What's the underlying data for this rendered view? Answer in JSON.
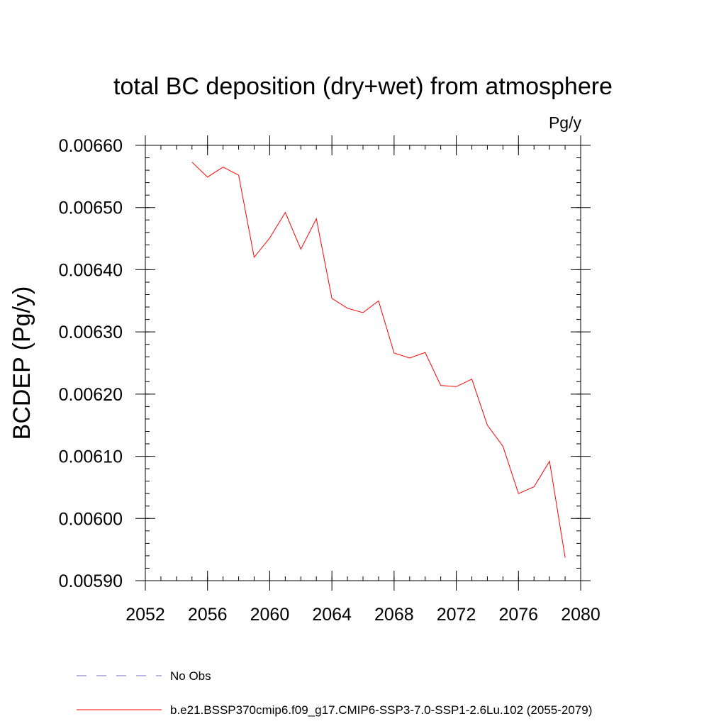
{
  "chart_data": {
    "type": "line",
    "title": "total BC deposition (dry+wet) from atmosphere",
    "units_label": "Pg/y",
    "ylabel": "BCDEP  (Pg/y)",
    "xlabel": "",
    "xlim": [
      2052,
      2080
    ],
    "ylim": [
      0.0059,
      0.0066
    ],
    "x_ticks": [
      2052,
      2056,
      2060,
      2064,
      2068,
      2072,
      2076,
      2080
    ],
    "x_tick_labels": [
      "2052",
      "2056",
      "2060",
      "2064",
      "2068",
      "2072",
      "2076",
      "2080"
    ],
    "y_ticks": [
      0.0059,
      0.006,
      0.0061,
      0.0062,
      0.0063,
      0.0064,
      0.0065,
      0.0066
    ],
    "y_tick_labels": [
      "0.00590",
      "0.00600",
      "0.00610",
      "0.00620",
      "0.00630",
      "0.00640",
      "0.00650",
      "0.00660"
    ],
    "grid": false,
    "legend": {
      "placement": "bottom",
      "entries": [
        {
          "label": "No Obs",
          "color": "#7b68c8",
          "style": "dashed"
        },
        {
          "label": "b.e21.BSSP370cmip6.f09_g17.CMIP6-SSP3-7.0-SSP1-2.6Lu.102 (2055-2079)",
          "color": "#ff0000",
          "style": "solid"
        }
      ]
    },
    "series": [
      {
        "name": "b.e21.BSSP370cmip6.f09_g17.CMIP6-SSP3-7.0-SSP1-2.6Lu.102 (2055-2079)",
        "color": "#ff0000",
        "x": [
          2055,
          2056,
          2057,
          2058,
          2059,
          2060,
          2061,
          2062,
          2063,
          2064,
          2065,
          2066,
          2067,
          2068,
          2069,
          2070,
          2071,
          2072,
          2073,
          2074,
          2075,
          2076,
          2077,
          2078,
          2079
        ],
        "y": [
          0.006573,
          0.006549,
          0.006565,
          0.006552,
          0.00642,
          0.006451,
          0.006492,
          0.006433,
          0.006482,
          0.006354,
          0.006338,
          0.006331,
          0.00635,
          0.006266,
          0.006258,
          0.006267,
          0.006214,
          0.006212,
          0.006224,
          0.00615,
          0.006116,
          0.00604,
          0.006051,
          0.006092,
          0.005937
        ]
      }
    ]
  }
}
